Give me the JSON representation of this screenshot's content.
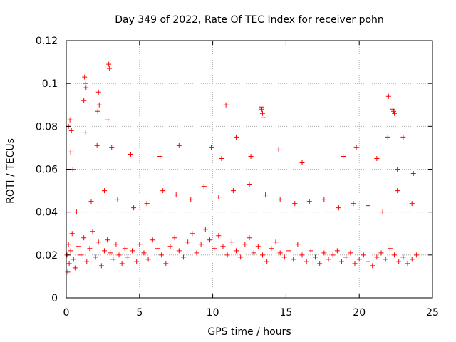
{
  "chart_data": {
    "type": "scatter",
    "title": "Day 349 of 2022, Rate Of TEC Index for receiver pohn",
    "xlabel": "GPS time / hours",
    "ylabel": "ROTI / TECUs",
    "xlim": [
      0,
      25
    ],
    "ylim": [
      0,
      0.12
    ],
    "x_ticks": [
      0,
      5,
      10,
      15,
      20,
      25
    ],
    "x_tick_labels": [
      "0",
      "5",
      "10",
      "15",
      "20",
      "25"
    ],
    "y_ticks": [
      0,
      0.02,
      0.04,
      0.06,
      0.08,
      0.1,
      0.12
    ],
    "y_tick_labels": [
      "0",
      "0.02",
      "0.04",
      "0.06",
      "0.08",
      "0.1",
      "0.12"
    ],
    "grid": true,
    "marker": "plus",
    "color": "#ff0000",
    "series": [
      {
        "name": "ROTI",
        "x": [
          0.05,
          0.1,
          0.15,
          0.2,
          0.3,
          0.4,
          0.5,
          0.6,
          0.8,
          1.0,
          1.2,
          1.4,
          1.6,
          1.8,
          2.0,
          2.2,
          2.4,
          2.6,
          2.8,
          3.0,
          3.2,
          3.4,
          3.6,
          3.8,
          4.0,
          4.2,
          4.5,
          4.8,
          5.0,
          5.3,
          5.6,
          5.9,
          6.2,
          6.5,
          6.8,
          7.1,
          7.4,
          7.7,
          8.0,
          8.3,
          8.6,
          8.9,
          9.2,
          9.5,
          9.8,
          10.1,
          10.4,
          10.7,
          11.0,
          11.3,
          11.6,
          11.9,
          12.2,
          12.5,
          12.8,
          13.1,
          13.4,
          13.7,
          14.0,
          14.3,
          14.6,
          14.9,
          15.2,
          15.5,
          15.8,
          16.1,
          16.4,
          16.7,
          17.0,
          17.3,
          17.6,
          17.9,
          18.2,
          18.5,
          18.8,
          19.1,
          19.4,
          19.7,
          20.0,
          20.3,
          20.6,
          20.9,
          21.2,
          21.5,
          21.8,
          22.1,
          22.4,
          22.7,
          23.0,
          23.3,
          23.6,
          23.9,
          0.15,
          0.25,
          0.35,
          1.25,
          1.3,
          1.35,
          1.2,
          2.2,
          2.25,
          2.9,
          2.95,
          2.85,
          2.15,
          10.9,
          13.3,
          13.35,
          13.4,
          13.5,
          22.0,
          22.3,
          22.35,
          22.4,
          21.95,
          23.0,
          1.3,
          0.3,
          0.45,
          2.1,
          3.1,
          4.4,
          6.4,
          7.7,
          9.9,
          10.6,
          11.6,
          12.6,
          14.5,
          16.1,
          18.9,
          19.8,
          21.2,
          22.6,
          23.7,
          0.7,
          1.7,
          2.6,
          3.5,
          4.6,
          5.5,
          6.6,
          7.5,
          8.5,
          9.4,
          10.4,
          11.4,
          12.5,
          13.6,
          14.6,
          15.6,
          16.6,
          17.6,
          18.6,
          19.6,
          20.6,
          21.6,
          22.6,
          23.6
        ],
        "y": [
          0.02,
          0.012,
          0.025,
          0.016,
          0.022,
          0.03,
          0.018,
          0.014,
          0.024,
          0.02,
          0.028,
          0.017,
          0.023,
          0.031,
          0.019,
          0.026,
          0.015,
          0.022,
          0.027,
          0.021,
          0.018,
          0.025,
          0.02,
          0.016,
          0.023,
          0.019,
          0.022,
          0.017,
          0.025,
          0.021,
          0.018,
          0.027,
          0.023,
          0.02,
          0.016,
          0.024,
          0.028,
          0.022,
          0.019,
          0.026,
          0.03,
          0.021,
          0.025,
          0.032,
          0.027,
          0.023,
          0.029,
          0.024,
          0.02,
          0.026,
          0.022,
          0.019,
          0.025,
          0.028,
          0.021,
          0.024,
          0.02,
          0.017,
          0.023,
          0.026,
          0.021,
          0.019,
          0.022,
          0.018,
          0.025,
          0.02,
          0.017,
          0.022,
          0.019,
          0.016,
          0.021,
          0.018,
          0.02,
          0.022,
          0.017,
          0.019,
          0.021,
          0.016,
          0.018,
          0.02,
          0.017,
          0.015,
          0.019,
          0.021,
          0.018,
          0.023,
          0.02,
          0.017,
          0.019,
          0.016,
          0.018,
          0.02,
          0.08,
          0.083,
          0.078,
          0.103,
          0.1,
          0.098,
          0.092,
          0.096,
          0.09,
          0.109,
          0.107,
          0.083,
          0.087,
          0.09,
          0.089,
          0.088,
          0.086,
          0.084,
          0.094,
          0.088,
          0.087,
          0.086,
          0.075,
          0.075,
          0.077,
          0.068,
          0.06,
          0.071,
          0.07,
          0.067,
          0.066,
          0.071,
          0.07,
          0.065,
          0.075,
          0.066,
          0.069,
          0.063,
          0.066,
          0.07,
          0.065,
          0.06,
          0.058,
          0.04,
          0.045,
          0.05,
          0.046,
          0.042,
          0.044,
          0.05,
          0.048,
          0.046,
          0.052,
          0.047,
          0.05,
          0.053,
          0.048,
          0.046,
          0.044,
          0.045,
          0.046,
          0.042,
          0.044,
          0.043,
          0.04,
          0.05,
          0.044
        ]
      }
    ]
  }
}
